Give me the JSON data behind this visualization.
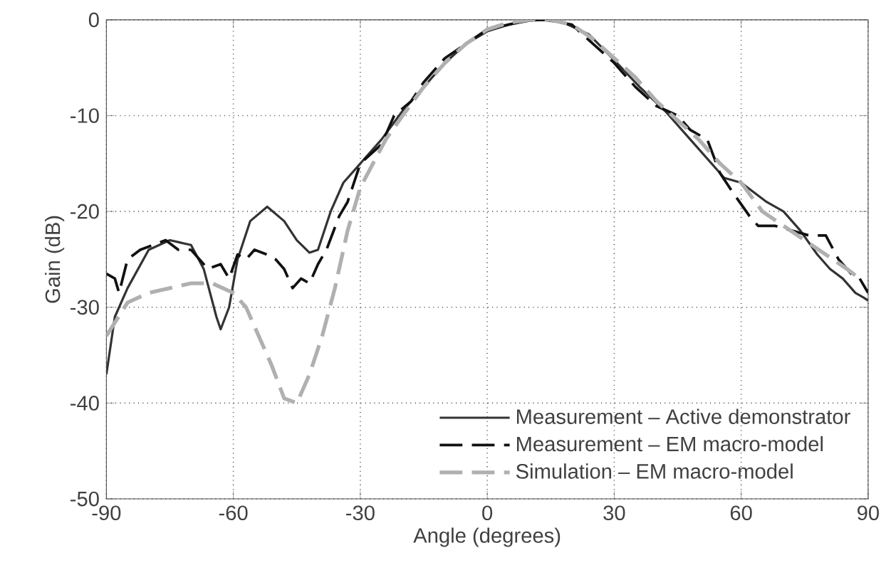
{
  "chart_data": {
    "type": "line",
    "xlabel": "Angle (degrees)",
    "ylabel": "Gain (dB)",
    "xlim": [
      -90,
      90
    ],
    "xticks": [
      -90,
      -60,
      -30,
      0,
      30,
      60,
      90
    ],
    "ylim": [
      -50,
      0
    ],
    "yticks": [
      -50,
      -40,
      -30,
      -20,
      -10,
      0
    ],
    "grid": true,
    "legend": "bottom right",
    "series": [
      {
        "name": "Measurement – Active demonstrator",
        "color": "#333333",
        "line_style": "solid",
        "x": [
          -90,
          -88,
          -85,
          -80,
          -75,
          -70,
          -67,
          -64,
          -63,
          -61,
          -59,
          -56,
          -52,
          -48,
          -45,
          -42,
          -40,
          -37,
          -34,
          -30,
          -25,
          -20,
          -15,
          -10,
          -5,
          0,
          5,
          10,
          13,
          18,
          24,
          30,
          36,
          42,
          48,
          54,
          56,
          60,
          63,
          66,
          70,
          74,
          78,
          81,
          84,
          87,
          89,
          90
        ],
        "values": [
          -37,
          -31,
          -28,
          -24,
          -23,
          -23.5,
          -26,
          -31,
          -32.3,
          -30,
          -25,
          -21,
          -19.5,
          -21,
          -23,
          -24.3,
          -24,
          -20,
          -17,
          -15,
          -12.5,
          -9.5,
          -7,
          -4.5,
          -2.5,
          -1.2,
          -0.5,
          -0.1,
          0,
          -0.3,
          -1.5,
          -4.2,
          -7,
          -9.5,
          -12.5,
          -15.5,
          -16.5,
          -17,
          -18,
          -19,
          -20,
          -22,
          -24.5,
          -26,
          -27,
          -28.5,
          -29,
          -29.3
        ]
      },
      {
        "name": "Measurement – EM macro-model",
        "color": "#111111",
        "line_style": "dashed",
        "x": [
          -90,
          -88,
          -87,
          -85,
          -82,
          -79,
          -76,
          -73,
          -70,
          -68,
          -66,
          -63,
          -61,
          -59,
          -57,
          -55,
          -52,
          -50,
          -48,
          -46,
          -44,
          -42,
          -40,
          -38,
          -35,
          -33,
          -30,
          -25,
          -22,
          -18,
          -15,
          -10,
          -5,
          0,
          5,
          10,
          14,
          20,
          25,
          30,
          35,
          40,
          45,
          48,
          52,
          55,
          58,
          62,
          64,
          68,
          72,
          76,
          80,
          83,
          86,
          88,
          90
        ],
        "values": [
          -26.5,
          -27,
          -28.5,
          -25,
          -24,
          -23.5,
          -23,
          -24,
          -24,
          -25,
          -26,
          -25.5,
          -27,
          -24.5,
          -25,
          -24,
          -24.5,
          -25,
          -26,
          -28,
          -27,
          -27.5,
          -25.5,
          -24,
          -20.5,
          -19,
          -15,
          -13,
          -10,
          -8.5,
          -6.5,
          -4,
          -2.5,
          -1,
          -0.5,
          0,
          0,
          -0.5,
          -2.5,
          -4.5,
          -7,
          -9,
          -10,
          -11.5,
          -12.5,
          -16,
          -18,
          -20.5,
          -21.5,
          -21.5,
          -22,
          -22.5,
          -22.5,
          -25,
          -26.5,
          -27,
          -28.5
        ]
      },
      {
        "name": "Simulation – EM macro-model",
        "color": "#b0b0b0",
        "line_style": "dashed",
        "x": [
          -90,
          -85,
          -80,
          -75,
          -70,
          -65,
          -60,
          -57,
          -54,
          -51,
          -48,
          -45,
          -42,
          -39,
          -36,
          -33,
          -30,
          -27,
          -24,
          -20,
          -15,
          -10,
          -5,
          0,
          5,
          10,
          15,
          20,
          25,
          30,
          35,
          40,
          45,
          50,
          55,
          60,
          65,
          70,
          75,
          80,
          85,
          88
        ],
        "values": [
          -33,
          -29.5,
          -28.5,
          -28,
          -27.5,
          -27.5,
          -28.5,
          -30,
          -33,
          -36,
          -39.5,
          -40,
          -37,
          -33,
          -28,
          -22,
          -17.5,
          -15,
          -12.5,
          -10,
          -7,
          -4.5,
          -2.5,
          -1,
          -0.3,
          0,
          0,
          -0.5,
          -2,
          -4,
          -6,
          -8.5,
          -10.5,
          -12.5,
          -15,
          -17,
          -20,
          -21.5,
          -23,
          -24.5,
          -26,
          -27
        ]
      }
    ]
  }
}
